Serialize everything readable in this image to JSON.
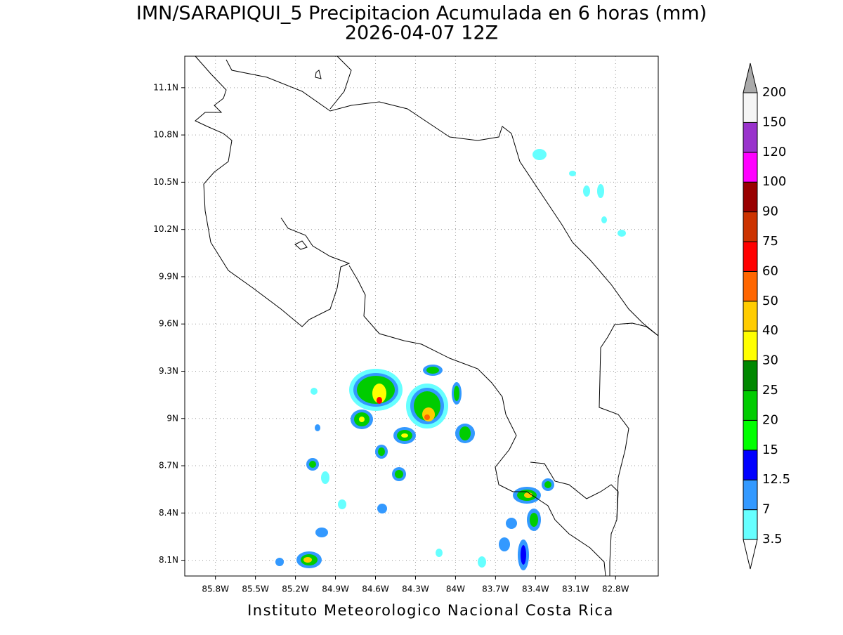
{
  "header": {
    "title": "IMN/SARAPIQUI_5 Precipitacion Acumulada en 6 horas (mm)",
    "subtitle": "2026-04-07 12Z"
  },
  "map": {
    "lon_range": [
      -86.03,
      -82.48
    ],
    "lat_range": [
      8.0,
      11.3
    ],
    "lon_ticks": [
      {
        "value": -85.8,
        "label": "85.8W"
      },
      {
        "value": -85.5,
        "label": "85.5W"
      },
      {
        "value": -85.2,
        "label": "85.2W"
      },
      {
        "value": -84.9,
        "label": "84.9W"
      },
      {
        "value": -84.6,
        "label": "84.6W"
      },
      {
        "value": -84.3,
        "label": "84.3W"
      },
      {
        "value": -84.0,
        "label": "84W"
      },
      {
        "value": -83.7,
        "label": "83.7W"
      },
      {
        "value": -83.4,
        "label": "83.4W"
      },
      {
        "value": -83.1,
        "label": "83.1W"
      },
      {
        "value": -82.8,
        "label": "82.8W"
      }
    ],
    "lat_ticks": [
      {
        "value": 8.1,
        "label": "8.1N"
      },
      {
        "value": 8.4,
        "label": "8.4N"
      },
      {
        "value": 8.7,
        "label": "8.7N"
      },
      {
        "value": 9.0,
        "label": "9N"
      },
      {
        "value": 9.3,
        "label": "9.3N"
      },
      {
        "value": 9.6,
        "label": "9.6N"
      },
      {
        "value": 9.9,
        "label": "9.9N"
      },
      {
        "value": 10.2,
        "label": "10.2N"
      },
      {
        "value": 10.5,
        "label": "10.5N"
      },
      {
        "value": 10.8,
        "label": "10.8N"
      },
      {
        "value": 11.1,
        "label": "11.1N"
      }
    ]
  },
  "colorbar": {
    "levels": [
      3.5,
      7,
      12.5,
      15,
      20,
      25,
      30,
      40,
      50,
      60,
      75,
      90,
      100,
      120,
      150,
      200
    ],
    "colors": [
      "#66ffff",
      "#3399ff",
      "#0000ff",
      "#00ff00",
      "#00cc00",
      "#008800",
      "#ffff00",
      "#ffcc00",
      "#ff6600",
      "#ff0000",
      "#cc3300",
      "#990000",
      "#ff00ff",
      "#9933cc",
      "#f5f5f5"
    ],
    "over_color": "#aaaaaa",
    "under_color": "#ffffff"
  },
  "footer": "Instituto Meteorologico Nacional Costa Rica"
}
